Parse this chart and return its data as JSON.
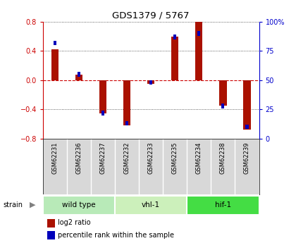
{
  "title": "GDS1379 / 5767",
  "samples": [
    "GSM62231",
    "GSM62236",
    "GSM62237",
    "GSM62232",
    "GSM62233",
    "GSM62235",
    "GSM62234",
    "GSM62238",
    "GSM62239"
  ],
  "log2_ratio": [
    0.42,
    0.08,
    -0.46,
    -0.62,
    -0.05,
    0.6,
    0.8,
    -0.35,
    -0.68
  ],
  "percentile_rank": [
    82,
    55,
    22,
    13,
    48,
    87,
    90,
    28,
    10
  ],
  "groups": [
    {
      "label": "wild type",
      "start": 0,
      "end": 3,
      "color": "#b8eab8"
    },
    {
      "label": "vhl-1",
      "start": 3,
      "end": 6,
      "color": "#ccf0bb"
    },
    {
      "label": "hif-1",
      "start": 6,
      "end": 9,
      "color": "#44dd44"
    }
  ],
  "ylim_left": [
    -0.8,
    0.8
  ],
  "ylim_right": [
    0,
    100
  ],
  "yticks_left": [
    -0.8,
    -0.4,
    0.0,
    0.4,
    0.8
  ],
  "yticks_right": [
    0,
    25,
    50,
    75,
    100
  ],
  "bar_color_red": "#aa1100",
  "bar_color_blue": "#0000bb",
  "bg_color": "#d8d8d8",
  "plot_bg": "#ffffff",
  "left_axis_color": "#cc0000",
  "right_axis_color": "#0000cc",
  "grid_dotted_color": "#333333",
  "grid_dashed_color": "#cc0000"
}
